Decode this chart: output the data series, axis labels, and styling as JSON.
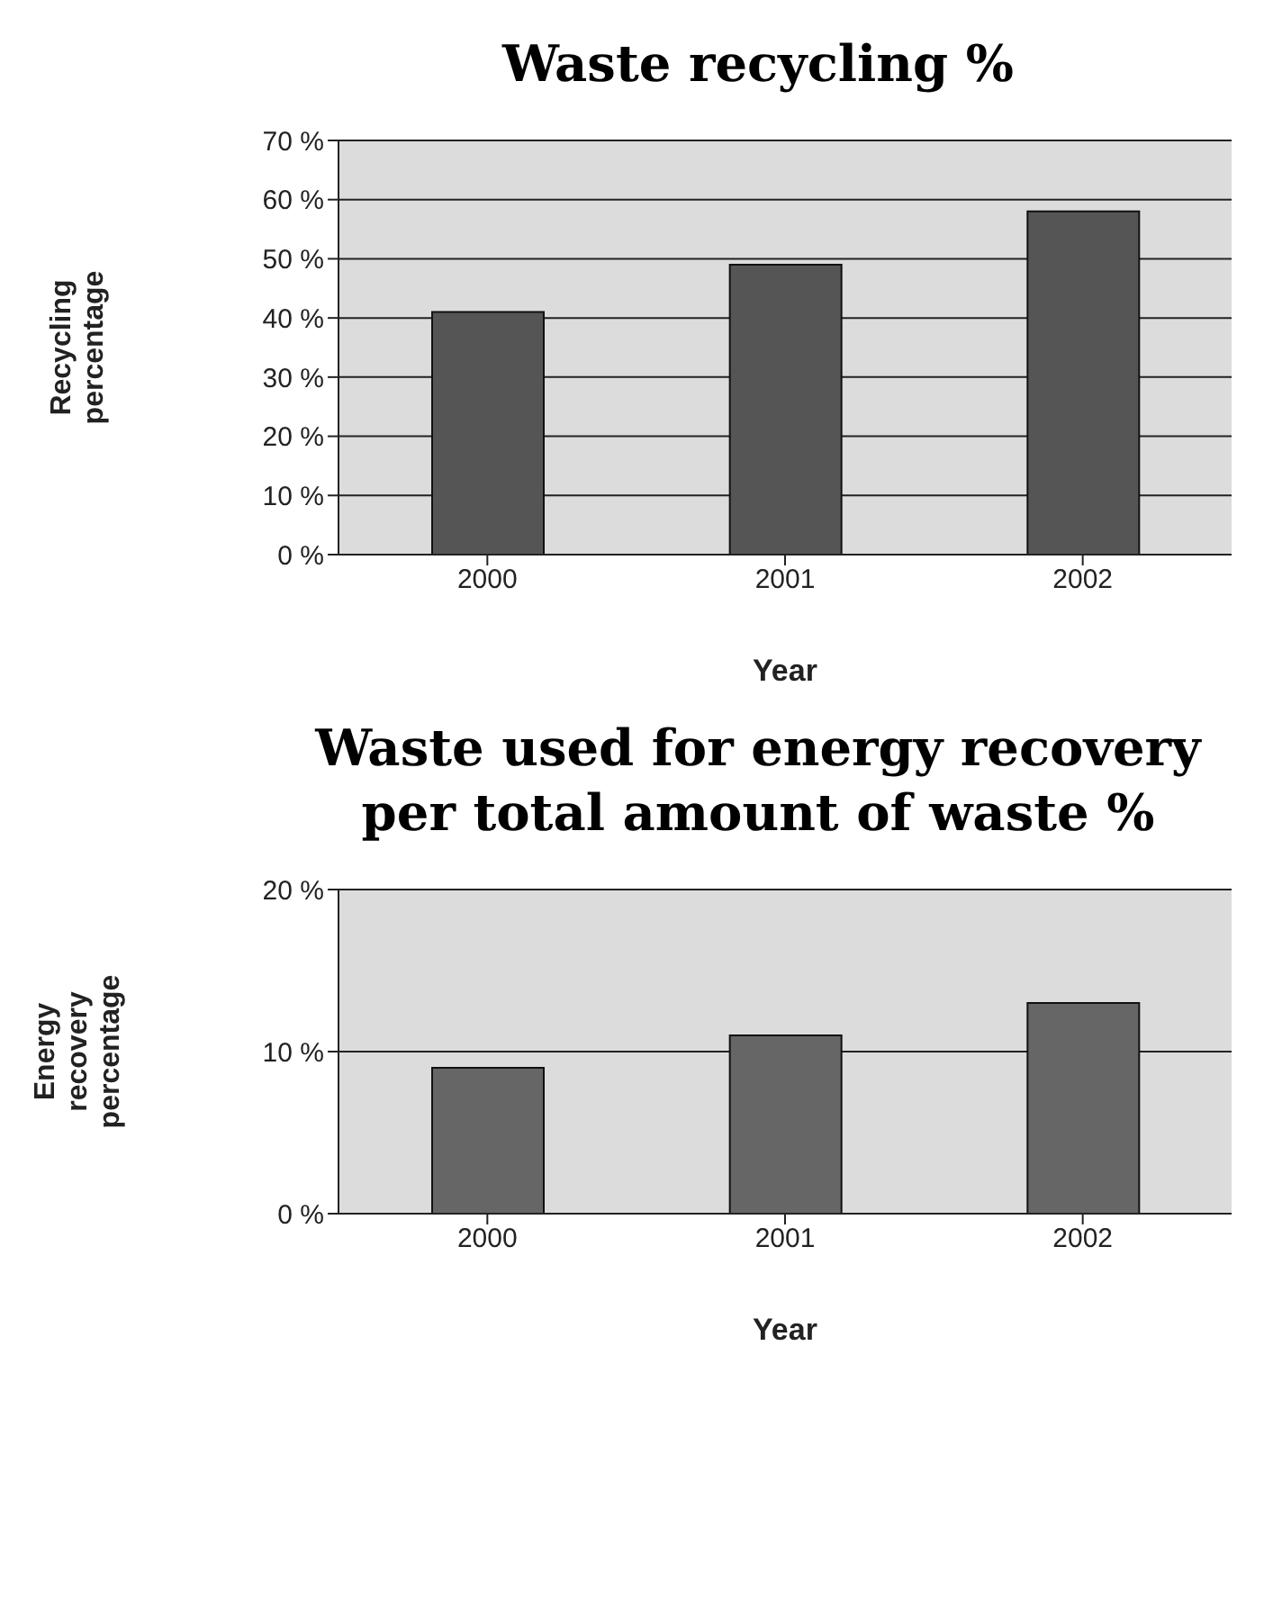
{
  "chart_data": [
    {
      "type": "bar",
      "title": "Waste recycling %",
      "xlabel": "Year",
      "ylabel": "Recycling percentage",
      "categories": [
        "2000",
        "2001",
        "2002"
      ],
      "values": [
        41,
        49,
        58
      ],
      "color": "#555555",
      "ylim": [
        0,
        70
      ],
      "yticks": [
        {
          "value": 0,
          "label": "0 %"
        },
        {
          "value": 10,
          "label": "10 %"
        },
        {
          "value": 20,
          "label": "20 %"
        },
        {
          "value": 30,
          "label": "30 %"
        },
        {
          "value": 40,
          "label": "40 %"
        },
        {
          "value": 50,
          "label": "50 %"
        },
        {
          "value": 60,
          "label": "60 %"
        },
        {
          "value": 70,
          "label": "70 %"
        }
      ],
      "grid": "y"
    },
    {
      "type": "bar",
      "title": "Waste used for energy recovery per total amount of waste %",
      "xlabel": "Year",
      "ylabel": "Energy recovery percentage",
      "categories": [
        "2000",
        "2001",
        "2002"
      ],
      "values": [
        9,
        11,
        13
      ],
      "color": "#666666",
      "ylim": [
        0,
        20
      ],
      "yticks": [
        {
          "value": 0,
          "label": "0 %"
        },
        {
          "value": 10,
          "label": "10 %"
        },
        {
          "value": 20,
          "label": "20 %"
        }
      ],
      "grid": "y"
    }
  ]
}
